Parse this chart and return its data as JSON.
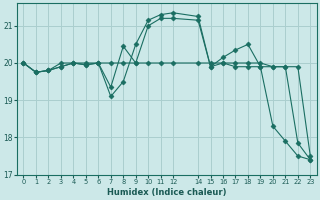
{
  "xlabel": "Humidex (Indice chaleur)",
  "ylabel": "",
  "bg_color": "#cce8e8",
  "grid_color": "#aacece",
  "line_color": "#1a6e62",
  "marker_color": "#1a6e62",
  "xlim": [
    -0.5,
    23.5
  ],
  "ylim": [
    17.0,
    21.6
  ],
  "yticks": [
    17,
    18,
    19,
    20,
    21
  ],
  "xtick_positions": [
    0,
    1,
    2,
    3,
    4,
    5,
    6,
    7,
    8,
    9,
    10,
    11,
    12,
    14,
    15,
    16,
    17,
    18,
    19,
    20,
    21,
    22,
    23
  ],
  "xtick_labels": [
    "0",
    "1",
    "2",
    "3",
    "4",
    "5",
    "6",
    "7",
    "8",
    "9",
    "10",
    "11",
    "12",
    "14",
    "15",
    "16",
    "17",
    "18",
    "19",
    "20",
    "21",
    "22",
    "23"
  ],
  "lines": [
    {
      "x": [
        0,
        1,
        2,
        3,
        4,
        5,
        6,
        7,
        8,
        9,
        10,
        11,
        12,
        14,
        15,
        16,
        17,
        18,
        19,
        20,
        21,
        22,
        23
      ],
      "y": [
        20.0,
        19.75,
        19.8,
        20.0,
        20.0,
        20.0,
        20.0,
        20.0,
        20.0,
        20.0,
        20.0,
        20.0,
        20.0,
        20.0,
        20.0,
        20.0,
        20.0,
        20.0,
        20.0,
        19.9,
        19.9,
        19.9,
        17.5
      ],
      "marker": "D",
      "ms": 2.5
    },
    {
      "x": [
        0,
        1,
        2,
        3,
        4,
        5,
        6,
        7,
        8,
        9,
        10,
        11,
        12,
        14,
        15,
        16,
        17,
        18,
        19,
        20,
        21,
        22,
        23
      ],
      "y": [
        20.0,
        19.75,
        19.8,
        19.9,
        20.0,
        19.95,
        20.0,
        19.1,
        19.5,
        20.5,
        21.15,
        21.3,
        21.35,
        21.25,
        19.9,
        20.0,
        19.9,
        19.9,
        19.9,
        18.3,
        17.9,
        17.5,
        17.4
      ],
      "marker": "D",
      "ms": 2.5
    },
    {
      "comment": "line with peak at 8 ~20.4, 10-12 ~21.0-21.2, then 17-18 up to 20.5",
      "x": [
        0,
        1,
        2,
        3,
        4,
        5,
        6,
        7,
        8,
        9,
        10,
        11,
        12,
        14,
        15,
        16,
        17,
        18,
        19,
        20,
        21,
        22,
        23
      ],
      "y": [
        20.0,
        19.75,
        19.8,
        19.9,
        20.0,
        19.95,
        20.0,
        19.35,
        20.45,
        20.0,
        21.0,
        21.2,
        21.2,
        21.15,
        19.9,
        20.15,
        20.35,
        20.5,
        19.9,
        19.9,
        19.9,
        17.85,
        17.4
      ],
      "marker": "D",
      "ms": 2.5
    }
  ]
}
